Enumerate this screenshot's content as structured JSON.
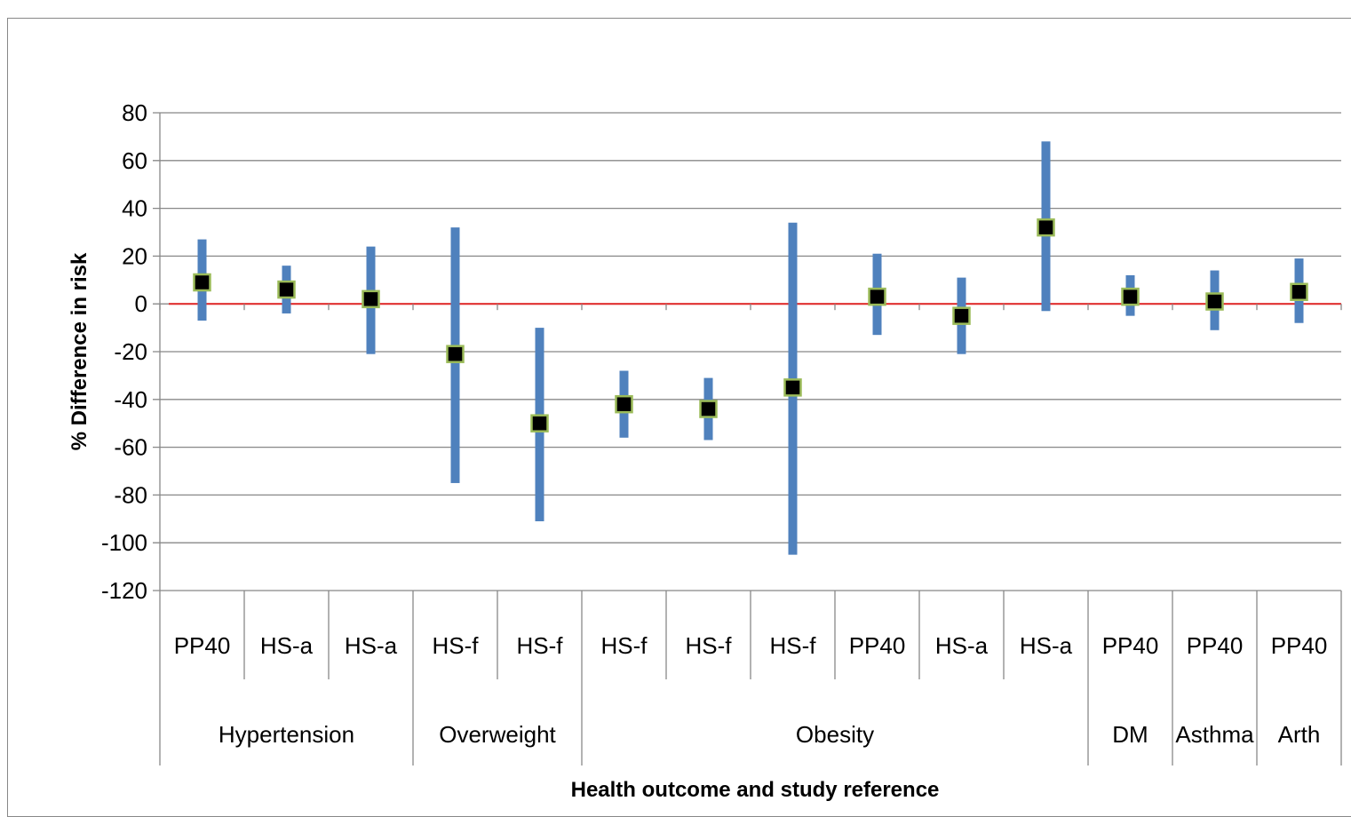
{
  "chart_data": {
    "type": "error-bar",
    "title": "",
    "xlabel": "Health outcome and study reference",
    "ylabel": "% Difference in risk",
    "ylim": [
      -120,
      80
    ],
    "yticks": [
      80,
      60,
      40,
      20,
      0,
      -20,
      -40,
      -60,
      -80,
      -100,
      -120
    ],
    "grid": true,
    "reference_line": 0,
    "colors": {
      "bar": "#4f81bd",
      "marker": "#000000",
      "marker_edge": "#9bbb59",
      "reference": "#e03030",
      "grid": "#888888"
    },
    "categories": [
      "PP40",
      "HS-a",
      "HS-a",
      "HS-f",
      "HS-f",
      "HS-f",
      "HS-f",
      "HS-f",
      "PP40",
      "HS-a",
      "HS-a",
      "PP40",
      "PP40",
      "PP40"
    ],
    "groups": [
      {
        "label": "Hypertension",
        "count": 3
      },
      {
        "label": "Overweight",
        "count": 2
      },
      {
        "label": "Obesity",
        "count": 6
      },
      {
        "label": "DM",
        "count": 1
      },
      {
        "label": "Asthma",
        "count": 1
      },
      {
        "label": "Arth",
        "count": 1
      }
    ],
    "points": [
      {
        "value": 9,
        "low": -7,
        "high": 27
      },
      {
        "value": 6,
        "low": -4,
        "high": 16
      },
      {
        "value": 2,
        "low": -21,
        "high": 24
      },
      {
        "value": -21,
        "low": -75,
        "high": 32
      },
      {
        "value": -50,
        "low": -91,
        "high": -10
      },
      {
        "value": -42,
        "low": -56,
        "high": -28
      },
      {
        "value": -44,
        "low": -57,
        "high": -31
      },
      {
        "value": -35,
        "low": -105,
        "high": 34
      },
      {
        "value": 3,
        "low": -13,
        "high": 21
      },
      {
        "value": -5,
        "low": -21,
        "high": 11
      },
      {
        "value": 32,
        "low": -3,
        "high": 68
      },
      {
        "value": 3,
        "low": -5,
        "high": 12
      },
      {
        "value": 1,
        "low": -11,
        "high": 14
      },
      {
        "value": 5,
        "low": -8,
        "high": 19
      }
    ]
  }
}
